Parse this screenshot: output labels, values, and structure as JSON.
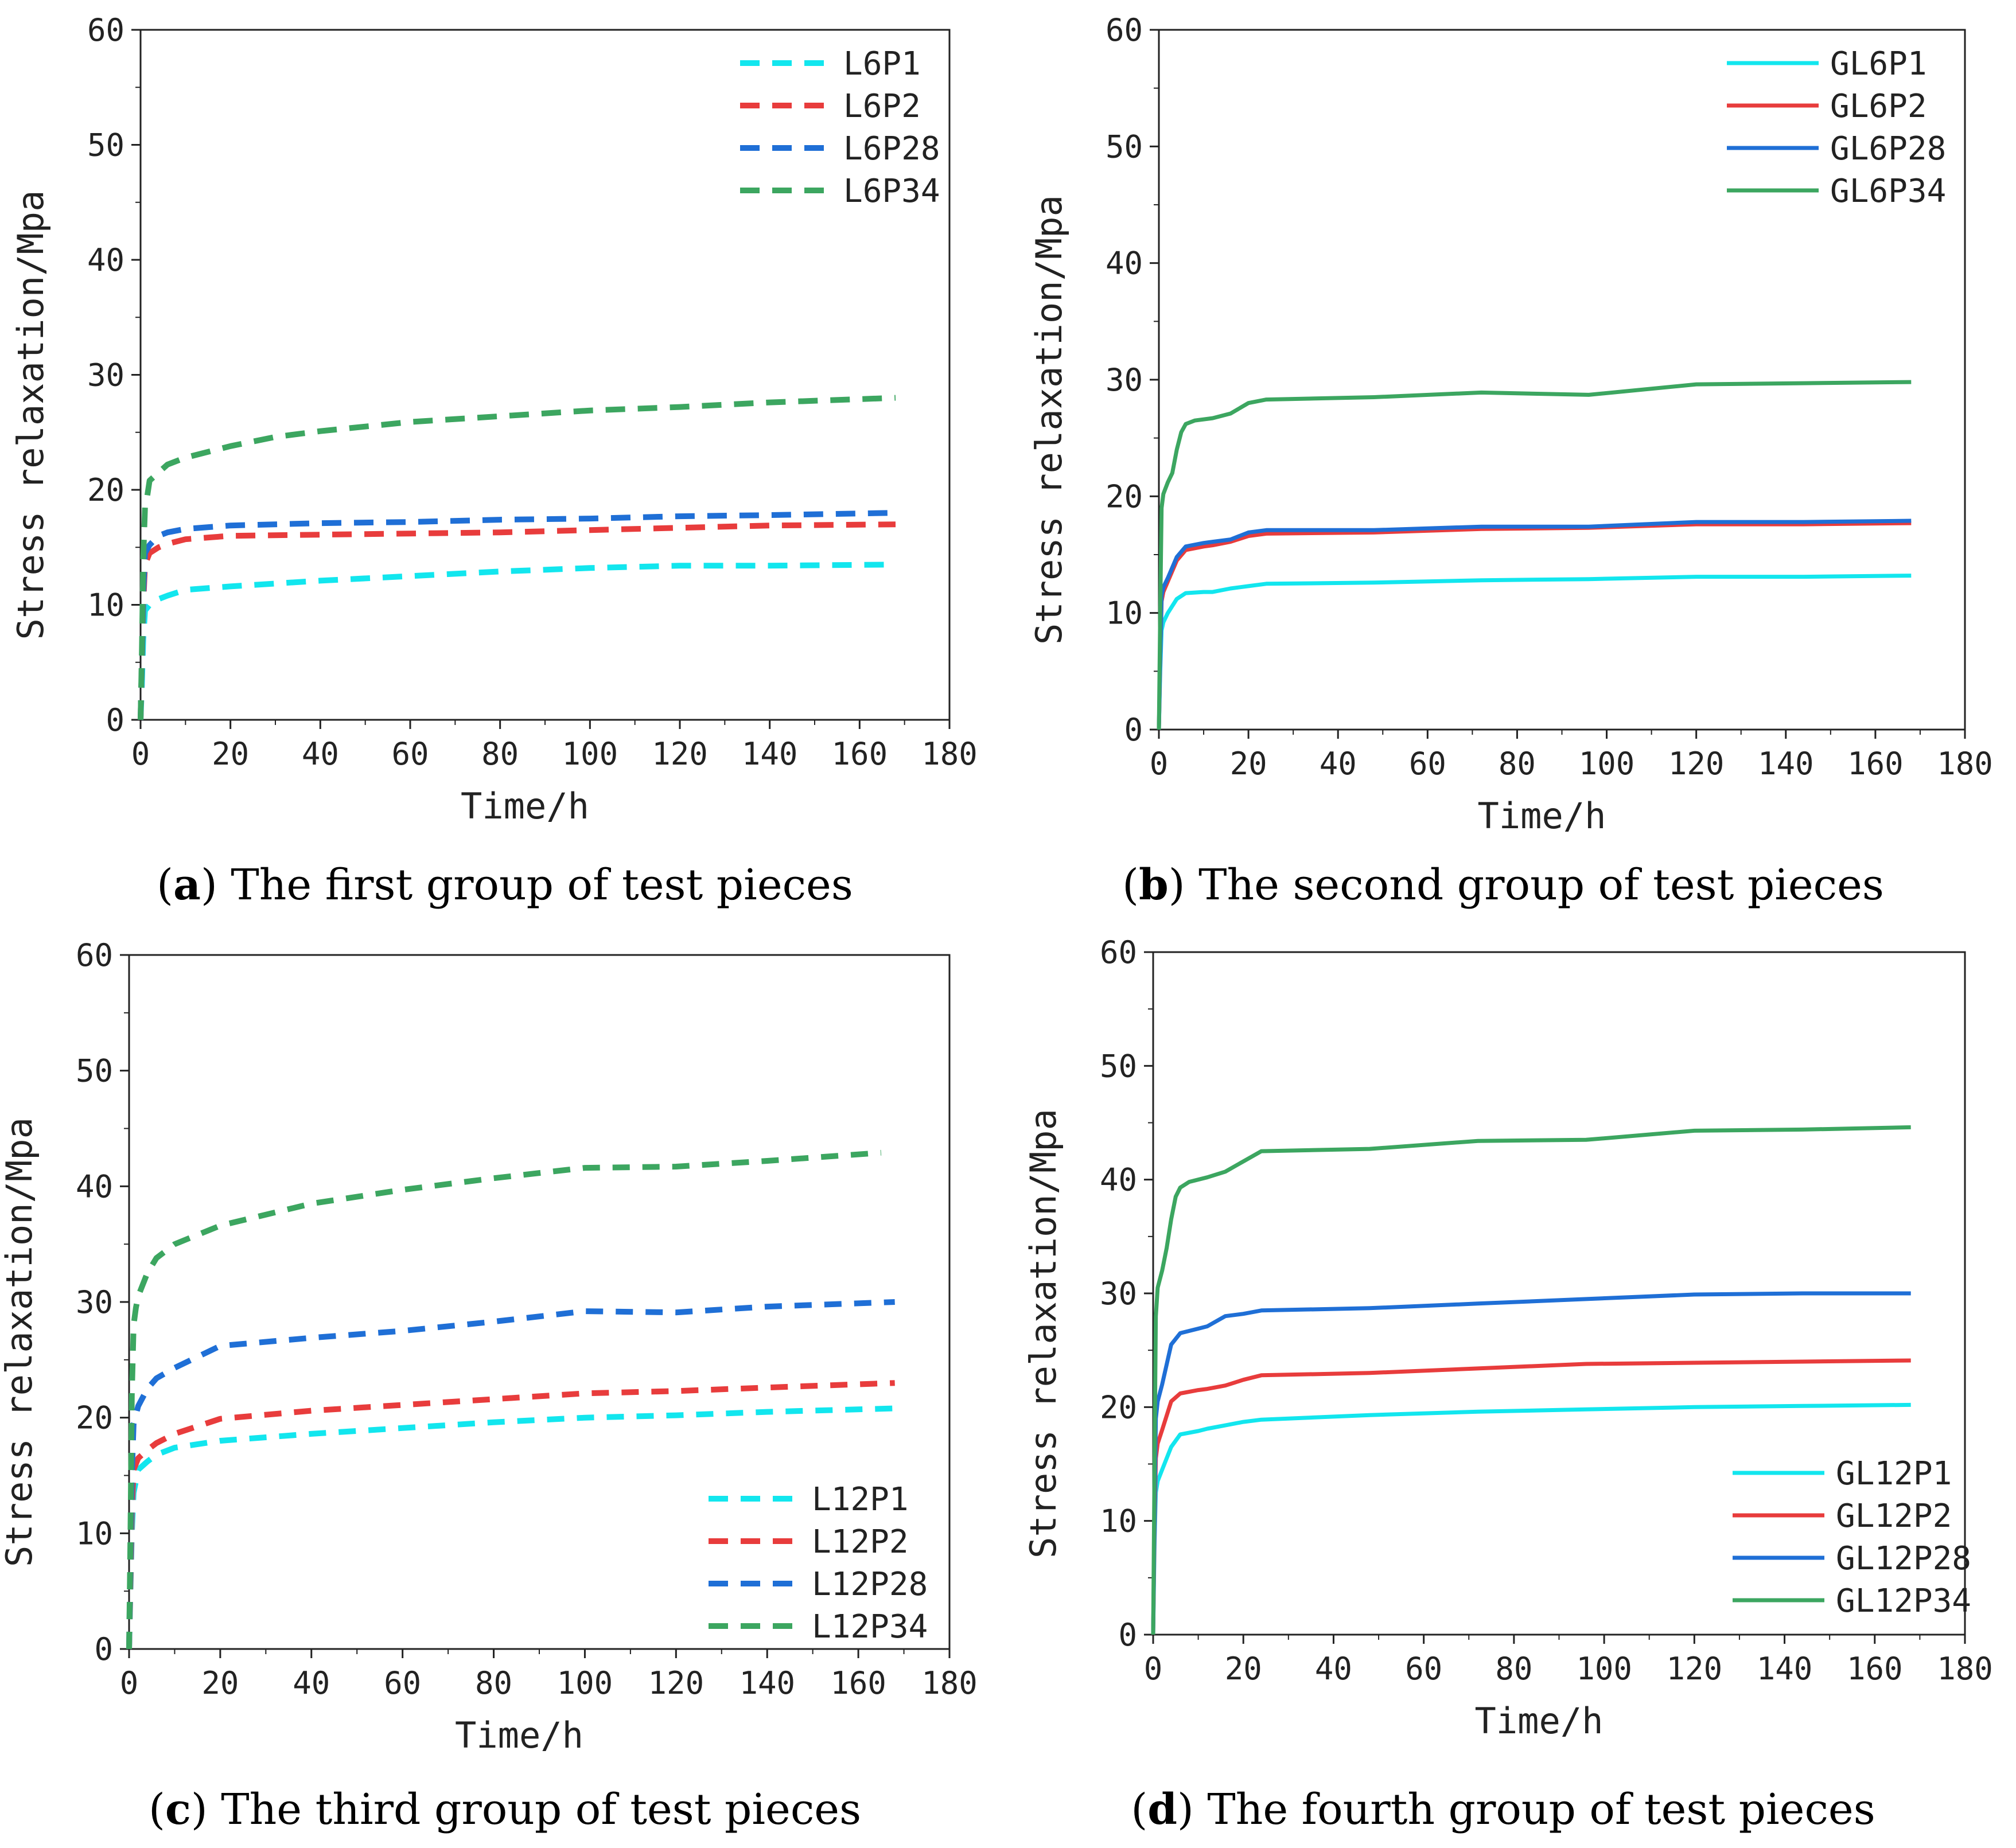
{
  "figure": {
    "panels": [
      {
        "caption": {
          "letter": "a",
          "text": "The first group of test pieces"
        },
        "chart_data": {
          "type": "line",
          "xlabel": "Time/h",
          "ylabel": "Stress relaxation/Mpa",
          "xlim": [
            0,
            180
          ],
          "ylim": [
            0,
            60
          ],
          "xticks": [
            0,
            20,
            40,
            60,
            80,
            100,
            120,
            140,
            160,
            180
          ],
          "yticks": [
            0,
            10,
            20,
            30,
            40,
            50,
            60
          ],
          "grid": false,
          "legend_position": "top-right",
          "line_style": "dashed",
          "series": [
            {
              "name": "L6P1",
              "color": "#12e6ee",
              "x": [
                0,
                0.3,
                0.6,
                1,
                2,
                4,
                6,
                10,
                20,
                40,
                60,
                80,
                100,
                120,
                140,
                168
              ],
              "y": [
                0,
                3,
                7,
                9.5,
                10,
                10.5,
                10.8,
                11.3,
                11.6,
                12.1,
                12.5,
                12.9,
                13.2,
                13.4,
                13.4,
                13.5
              ]
            },
            {
              "name": "L6P2",
              "color": "#e83c3c",
              "x": [
                0,
                0.3,
                0.6,
                1,
                2,
                4,
                6,
                10,
                20,
                40,
                60,
                80,
                100,
                120,
                140,
                168
              ],
              "y": [
                0,
                5,
                10,
                13.5,
                14.5,
                15,
                15.3,
                15.7,
                16,
                16.1,
                16.2,
                16.3,
                16.5,
                16.7,
                16.9,
                17.0
              ]
            },
            {
              "name": "L6P28",
              "color": "#1f6fd6",
              "x": [
                0,
                0.3,
                0.6,
                1,
                2,
                4,
                6,
                10,
                20,
                40,
                60,
                80,
                100,
                120,
                140,
                168
              ],
              "y": [
                0,
                5,
                11,
                14.5,
                15.2,
                16,
                16.3,
                16.6,
                16.9,
                17.1,
                17.2,
                17.4,
                17.5,
                17.7,
                17.8,
                18.0
              ]
            },
            {
              "name": "L6P34",
              "color": "#3ca660",
              "x": [
                0,
                0.3,
                0.6,
                1,
                1.5,
                2,
                4,
                6,
                10,
                20,
                30,
                40,
                60,
                80,
                100,
                120,
                140,
                168
              ],
              "y": [
                0,
                6,
                14,
                18.5,
                19.5,
                20.8,
                21.5,
                22.2,
                22.8,
                23.8,
                24.6,
                25.1,
                25.9,
                26.4,
                26.9,
                27.2,
                27.6,
                28.0
              ]
            }
          ]
        }
      },
      {
        "caption": {
          "letter": "b",
          "text": "The second group of test pieces"
        },
        "chart_data": {
          "type": "line",
          "xlabel": "Time/h",
          "ylabel": "Stress relaxation/Mpa",
          "xlim": [
            0,
            180
          ],
          "ylim": [
            0,
            60
          ],
          "xticks": [
            0,
            20,
            40,
            60,
            80,
            100,
            120,
            140,
            160,
            180
          ],
          "yticks": [
            0,
            10,
            20,
            30,
            40,
            50,
            60
          ],
          "grid": false,
          "legend_position": "top-right",
          "line_style": "solid",
          "series": [
            {
              "name": "GL6P1",
              "color": "#12e6ee",
              "x": [
                0,
                0.3,
                0.6,
                1,
                2,
                4,
                6,
                10,
                12,
                16,
                20,
                24,
                48,
                72,
                96,
                120,
                144,
                168
              ],
              "y": [
                0,
                5,
                8.5,
                9.2,
                10,
                11.2,
                11.7,
                11.8,
                11.8,
                12.1,
                12.3,
                12.5,
                12.6,
                12.8,
                12.9,
                13.1,
                13.1,
                13.2
              ]
            },
            {
              "name": "GL6P2",
              "color": "#e83c3c",
              "x": [
                0,
                0.3,
                0.6,
                1,
                2,
                4,
                6,
                10,
                12,
                16,
                20,
                24,
                48,
                72,
                96,
                120,
                144,
                168
              ],
              "y": [
                0,
                6,
                11,
                11.8,
                12.7,
                14.5,
                15.4,
                15.7,
                15.8,
                16.1,
                16.6,
                16.8,
                16.9,
                17.2,
                17.3,
                17.6,
                17.6,
                17.7
              ]
            },
            {
              "name": "GL6P28",
              "color": "#1f6fd6",
              "x": [
                0,
                0.3,
                0.6,
                1,
                2,
                4,
                6,
                10,
                12,
                16,
                20,
                24,
                48,
                72,
                96,
                120,
                144,
                168
              ],
              "y": [
                0,
                6,
                11.5,
                12.2,
                13,
                14.8,
                15.7,
                16,
                16.1,
                16.3,
                16.9,
                17.1,
                17.1,
                17.4,
                17.4,
                17.8,
                17.8,
                17.9
              ]
            },
            {
              "name": "GL6P34",
              "color": "#3ca660",
              "x": [
                0,
                0.3,
                0.6,
                1,
                2,
                3,
                4,
                5,
                6,
                8,
                12,
                16,
                20,
                24,
                48,
                72,
                96,
                120,
                144,
                168
              ],
              "y": [
                0,
                10,
                19,
                20.2,
                21.2,
                22,
                24,
                25.5,
                26.2,
                26.5,
                26.7,
                27.1,
                28,
                28.3,
                28.5,
                28.9,
                28.7,
                29.6,
                29.7,
                29.8
              ]
            }
          ]
        }
      },
      {
        "caption": {
          "letter": "c",
          "text": "The third group of test pieces"
        },
        "chart_data": {
          "type": "line",
          "xlabel": "Time/h",
          "ylabel": "Stress relaxation/Mpa",
          "xlim": [
            0,
            180
          ],
          "ylim": [
            0,
            60
          ],
          "xticks": [
            0,
            20,
            40,
            60,
            80,
            100,
            120,
            140,
            160,
            180
          ],
          "yticks": [
            0,
            10,
            20,
            30,
            40,
            50,
            60
          ],
          "grid": false,
          "legend_position": "bottom-right",
          "line_style": "dashed",
          "series": [
            {
              "name": "L12P1",
              "color": "#12e6ee",
              "x": [
                0,
                0.3,
                0.6,
                1,
                2,
                4,
                6,
                10,
                20,
                40,
                60,
                80,
                100,
                120,
                140,
                168
              ],
              "y": [
                0,
                5,
                10,
                13.5,
                15.5,
                16.2,
                16.8,
                17.4,
                18.0,
                18.6,
                19.1,
                19.6,
                20.0,
                20.2,
                20.5,
                20.8
              ]
            },
            {
              "name": "L12P2",
              "color": "#e83c3c",
              "x": [
                0,
                0.3,
                0.6,
                1,
                2,
                4,
                6,
                10,
                20,
                40,
                60,
                80,
                100,
                120,
                140,
                168
              ],
              "y": [
                0,
                6,
                12,
                15.5,
                16.5,
                17.2,
                17.8,
                18.6,
                19.9,
                20.6,
                21.1,
                21.6,
                22.1,
                22.3,
                22.6,
                23.0
              ]
            },
            {
              "name": "L12P28",
              "color": "#1f6fd6",
              "x": [
                0,
                0.3,
                0.6,
                1,
                2,
                4,
                6,
                10,
                20,
                40,
                60,
                80,
                100,
                120,
                140,
                168
              ],
              "y": [
                0,
                8,
                15,
                19.5,
                21,
                22.5,
                23.4,
                24.3,
                26.2,
                26.9,
                27.5,
                28.3,
                29.2,
                29.1,
                29.6,
                30.0
              ]
            },
            {
              "name": "L12P34",
              "color": "#3ca660",
              "x": [
                0,
                0.3,
                0.6,
                1,
                1.5,
                2,
                4,
                6,
                10,
                20,
                40,
                60,
                80,
                100,
                120,
                140,
                165
              ],
              "y": [
                0,
                10,
                22,
                28,
                29.5,
                30.5,
                32.5,
                33.8,
                35.0,
                36.6,
                38.5,
                39.7,
                40.7,
                41.6,
                41.7,
                42.2,
                42.9
              ]
            }
          ]
        }
      },
      {
        "caption": {
          "letter": "d",
          "text": "The fourth group of test pieces"
        },
        "chart_data": {
          "type": "line",
          "xlabel": "Time/h",
          "ylabel": "Stress relaxation/Mpa",
          "xlim": [
            0,
            180
          ],
          "ylim": [
            0,
            60
          ],
          "xticks": [
            0,
            20,
            40,
            60,
            80,
            100,
            120,
            140,
            160,
            180
          ],
          "yticks": [
            0,
            10,
            20,
            30,
            40,
            50,
            60
          ],
          "grid": false,
          "legend_position": "bottom-right",
          "line_style": "solid",
          "series": [
            {
              "name": "GL12P1",
              "color": "#12e6ee",
              "x": [
                0,
                0.3,
                0.6,
                1,
                2,
                4,
                6,
                10,
                12,
                16,
                20,
                24,
                48,
                72,
                96,
                120,
                144,
                168
              ],
              "y": [
                0,
                8,
                12.5,
                13.5,
                14.5,
                16.5,
                17.6,
                17.9,
                18.1,
                18.4,
                18.7,
                18.9,
                19.3,
                19.6,
                19.8,
                20.0,
                20.1,
                20.2
              ]
            },
            {
              "name": "GL12P2",
              "color": "#e83c3c",
              "x": [
                0,
                0.3,
                0.6,
                1,
                2,
                4,
                6,
                10,
                12,
                16,
                20,
                24,
                48,
                72,
                96,
                120,
                144,
                168
              ],
              "y": [
                0,
                9,
                15.5,
                16.8,
                18,
                20.5,
                21.2,
                21.5,
                21.6,
                21.9,
                22.4,
                22.8,
                23.0,
                23.4,
                23.8,
                23.9,
                24.0,
                24.1
              ]
            },
            {
              "name": "GL12P28",
              "color": "#1f6fd6",
              "x": [
                0,
                0.3,
                0.6,
                1,
                2,
                4,
                6,
                10,
                12,
                16,
                20,
                24,
                48,
                72,
                96,
                120,
                144,
                168
              ],
              "y": [
                0,
                10,
                19,
                20.5,
                22,
                25.5,
                26.5,
                26.9,
                27.1,
                28.0,
                28.2,
                28.5,
                28.7,
                29.1,
                29.5,
                29.9,
                30.0,
                30.0
              ]
            },
            {
              "name": "GL12P34",
              "color": "#3ca660",
              "x": [
                0,
                0.3,
                0.6,
                1,
                2,
                3,
                4,
                5,
                6,
                8,
                12,
                16,
                20,
                24,
                48,
                72,
                96,
                120,
                144,
                168
              ],
              "y": [
                0,
                15,
                28,
                30.5,
                32,
                34,
                36.5,
                38.5,
                39.3,
                39.8,
                40.2,
                40.7,
                41.6,
                42.5,
                42.7,
                43.4,
                43.5,
                44.3,
                44.4,
                44.6
              ]
            }
          ]
        }
      }
    ]
  }
}
